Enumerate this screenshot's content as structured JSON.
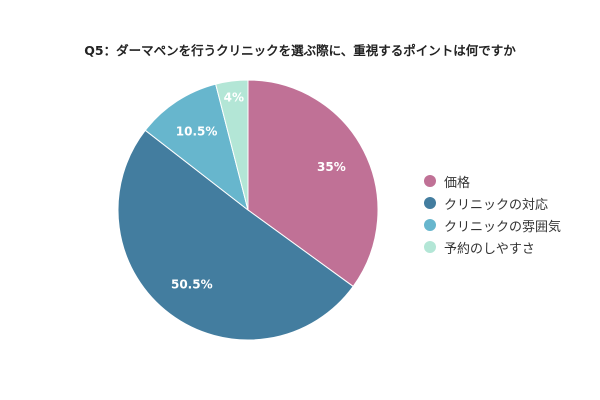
{
  "chart_data": {
    "type": "pie",
    "title": "Q5：ダーマペンを行うクリニックを選ぶ際に、重視するポイントは何ですか",
    "categories": [
      "価格",
      "クリニックの対応",
      "クリニックの雰囲気",
      "予約のしやすさ"
    ],
    "values": [
      35,
      50.5,
      10.5,
      4
    ],
    "labels": [
      "35%",
      "50.5%",
      "10.5%",
      "4%"
    ],
    "colors": [
      "#c07196",
      "#437d9f",
      "#67b6cd",
      "#b3e6d6"
    ],
    "start": "12 o'clock, clockwise",
    "legend_position": "right"
  }
}
